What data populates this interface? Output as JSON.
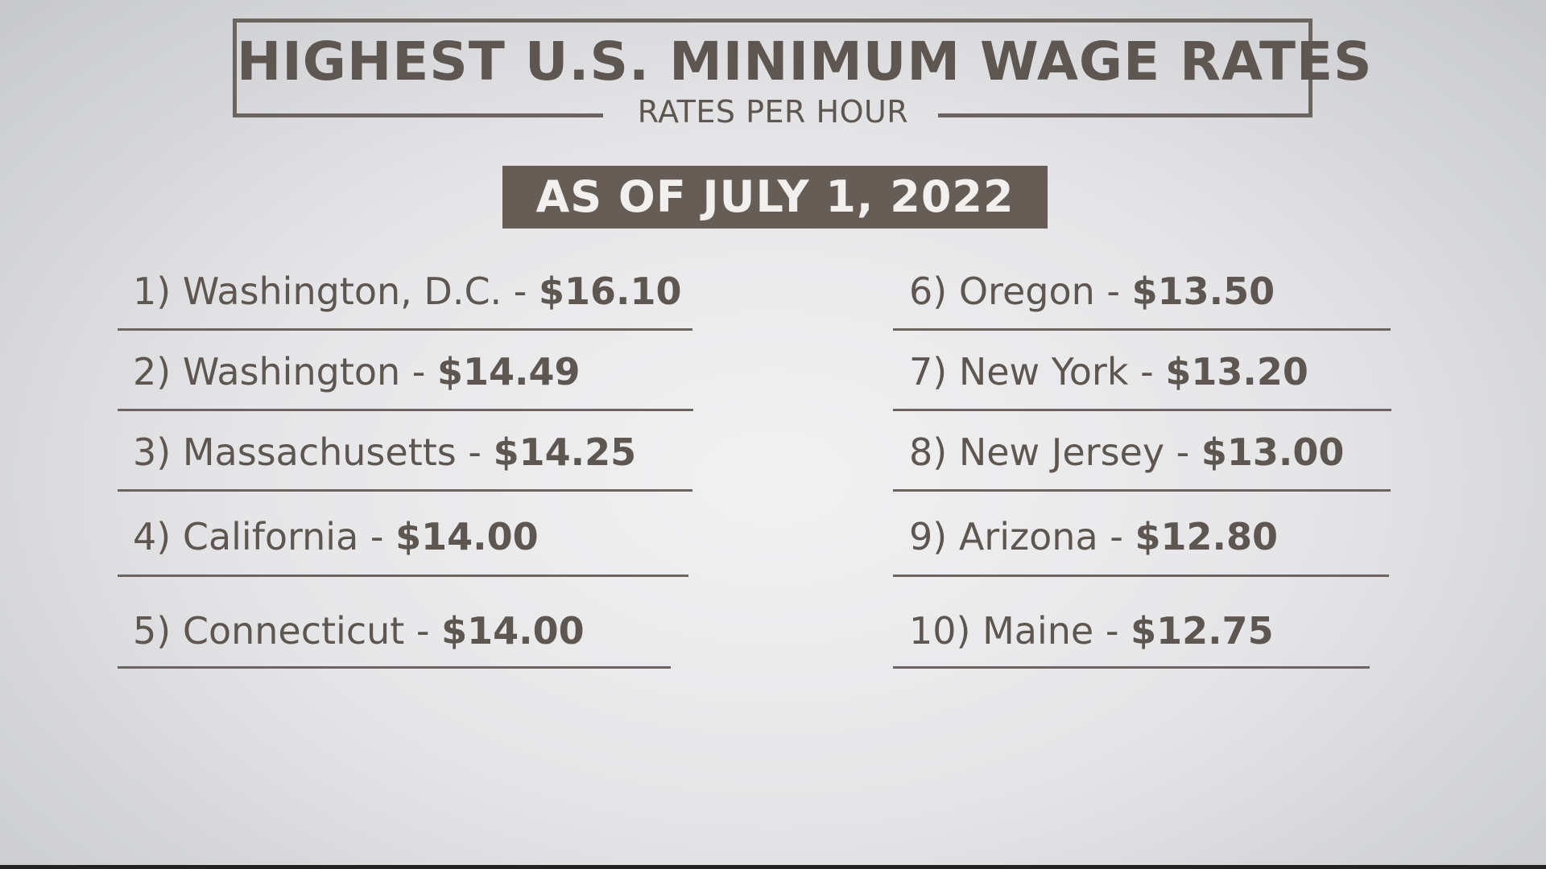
{
  "title": "HIGHEST U.S. MINIMUM WAGE RATES",
  "subtitle": "RATES PER HOUR",
  "date_badge": "AS OF JULY 1, 2022",
  "rates": [
    {
      "label": "1) Washington, D.C. - ",
      "price": "$16.10"
    },
    {
      "label": "2) Washington - ",
      "price": "$14.49"
    },
    {
      "label": "3) Massachusetts - ",
      "price": "$14.25"
    },
    {
      "label": "4) California - ",
      "price": "$14.00"
    },
    {
      "label": "5) Connecticut - ",
      "price": "$14.00"
    },
    {
      "label": "6) Oregon - ",
      "price": "$13.50"
    },
    {
      "label": "7) New York - ",
      "price": "$13.20"
    },
    {
      "label": "8) New Jersey - ",
      "price": "$13.00"
    },
    {
      "label": "9) Arizona - ",
      "price": "$12.80"
    },
    {
      "label": "10) Maine - ",
      "price": "$12.75"
    }
  ],
  "colors": {
    "text": "#5e5650",
    "badge_bg": "#655d56",
    "badge_text": "#f2f0ee",
    "rule": "#6c645e"
  }
}
